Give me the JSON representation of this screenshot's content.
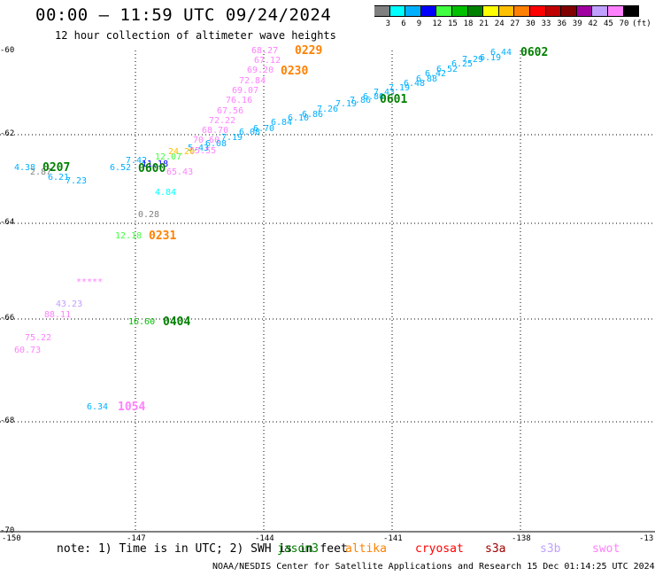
{
  "title": "00:00 – 11:59 UTC 09/24/2024",
  "subtitle": "12 hour collection of altimeter wave heights",
  "colorbar": {
    "ticks": [
      "3",
      "6",
      "9",
      "12",
      "15",
      "18",
      "21",
      "24",
      "27",
      "30",
      "33",
      "36",
      "39",
      "42",
      "45",
      "70"
    ],
    "unit": "(ft)",
    "colors": [
      "#808080",
      "#00ffff",
      "#00b0ff",
      "#0000ff",
      "#40ff40",
      "#00c000",
      "#008000",
      "#ffff00",
      "#ffc000",
      "#ff8000",
      "#ff0000",
      "#c00000",
      "#800000",
      "#a000a0",
      "#c0a0ff",
      "#ff80ff",
      "#000000"
    ]
  },
  "axes": {
    "lon_ticks": [
      "-150",
      "-147",
      "-144",
      "-141",
      "-138",
      "-13"
    ],
    "lat_ticks": [
      "-60",
      "-62",
      "-64",
      "-66",
      "-68",
      "-70"
    ]
  },
  "labels": [
    {
      "t": "68.27",
      "c": "#ff80ff"
    },
    {
      "t": "67.12",
      "c": "#ff80ff"
    },
    {
      "t": "69.20",
      "c": "#ff80ff"
    },
    {
      "t": "72.84",
      "c": "#ff80ff"
    },
    {
      "t": "69.07",
      "c": "#ff80ff"
    },
    {
      "t": "76.16",
      "c": "#ff80ff"
    },
    {
      "t": "67.56",
      "c": "#ff80ff"
    },
    {
      "t": "72.22",
      "c": "#ff80ff"
    },
    {
      "t": "68.70",
      "c": "#ff80ff"
    },
    {
      "t": "70.60",
      "c": "#ff80ff"
    },
    {
      "t": "65.43",
      "c": "#ff80ff"
    },
    {
      "t": "65.55",
      "c": "#ff80ff"
    },
    {
      "t": "6.44",
      "c": "#00b0ff"
    },
    {
      "t": "6.19",
      "c": "#00b0ff"
    },
    {
      "t": "7.29",
      "c": "#00b0ff"
    },
    {
      "t": "6.25",
      "c": "#00b0ff"
    },
    {
      "t": "6.52",
      "c": "#00b0ff"
    },
    {
      "t": "6.42",
      "c": "#00b0ff"
    },
    {
      "t": "6.88",
      "c": "#00b0ff"
    },
    {
      "t": "6.48",
      "c": "#00b0ff"
    },
    {
      "t": "7.19",
      "c": "#00b0ff"
    },
    {
      "t": "7.43",
      "c": "#00b0ff"
    },
    {
      "t": "6.80",
      "c": "#00b0ff"
    },
    {
      "t": "7.86",
      "c": "#00b0ff"
    },
    {
      "t": "7.19",
      "c": "#00b0ff"
    },
    {
      "t": "7.26",
      "c": "#00b0ff"
    },
    {
      "t": "6.86",
      "c": "#00b0ff"
    },
    {
      "t": "6.10",
      "c": "#00b0ff"
    },
    {
      "t": "6.84",
      "c": "#00b0ff"
    },
    {
      "t": "6.70",
      "c": "#00b0ff"
    },
    {
      "t": "6.08",
      "c": "#00b0ff"
    },
    {
      "t": "7.19",
      "c": "#00b0ff"
    },
    {
      "t": "6.08",
      "c": "#00b0ff"
    },
    {
      "t": "5.43",
      "c": "#00b0ff"
    },
    {
      "t": "7.42",
      "c": "#00b0ff"
    },
    {
      "t": "6.52",
      "c": "#00b0ff"
    },
    {
      "t": "11.18",
      "c": "#0000ff"
    },
    {
      "t": "12.07",
      "c": "#40ff40"
    },
    {
      "t": "24.20",
      "c": "#ffc000"
    },
    {
      "t": "4.38",
      "c": "#00b0ff"
    },
    {
      "t": "2.87",
      "c": "#808080"
    },
    {
      "t": "6.21",
      "c": "#00b0ff"
    },
    {
      "t": "7.23",
      "c": "#00b0ff"
    },
    {
      "t": "4.84",
      "c": "#00ffff"
    },
    {
      "t": "0.28",
      "c": "#808080"
    },
    {
      "t": "12.18",
      "c": "#40ff40"
    },
    {
      "t": "*****",
      "c": "#ff80ff"
    },
    {
      "t": "43.23",
      "c": "#c0a0ff"
    },
    {
      "t": "88.11",
      "c": "#ff80ff"
    },
    {
      "t": "16.60",
      "c": "#00c000"
    },
    {
      "t": "75.22",
      "c": "#ff80ff"
    },
    {
      "t": "60.73",
      "c": "#ff80ff"
    },
    {
      "t": "6.34",
      "c": "#00b0ff"
    }
  ],
  "passes": [
    {
      "t": "0229",
      "c": "#ff8000"
    },
    {
      "t": "0230",
      "c": "#ff8000"
    },
    {
      "t": "0602",
      "c": "#008000"
    },
    {
      "t": "0601",
      "c": "#008000"
    },
    {
      "t": "0207",
      "c": "#008000"
    },
    {
      "t": "0600",
      "c": "#008000"
    },
    {
      "t": "0231",
      "c": "#ff8000"
    },
    {
      "t": "0404",
      "c": "#008000"
    },
    {
      "t": "1054",
      "c": "#ff80ff"
    }
  ],
  "note": "note: 1) Time is in UTC; 2) SWH is in feet",
  "satellites": [
    {
      "t": "jason3",
      "c": "#008000"
    },
    {
      "t": "altika",
      "c": "#ff8000"
    },
    {
      "t": "cryosat",
      "c": "#ff0000"
    },
    {
      "t": "s3a",
      "c": "#a00000"
    },
    {
      "t": "s3b",
      "c": "#c0a0ff"
    },
    {
      "t": "swot",
      "c": "#ff80ff"
    }
  ],
  "credit": "NOAA/NESDIS Center for Satellite Applications and Research    15 Dec 01:14:25 UTC 2024"
}
